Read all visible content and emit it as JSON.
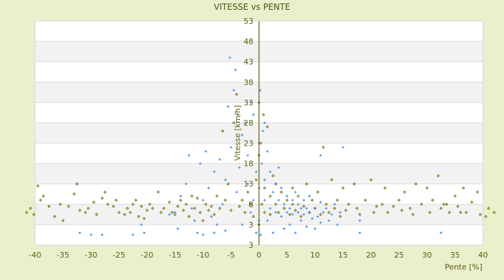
{
  "chart_data": {
    "type": "scatter",
    "title": "VITESSE vs PENTE",
    "xlabel": "Pente [%]",
    "ylabel": "Vitesse [km/h]",
    "xlim": [
      -40,
      40
    ],
    "ylim": [
      -2,
      53
    ],
    "x_ticks": [
      "-40",
      "-35",
      "-30",
      "-25",
      "-20",
      "-15",
      "-10",
      "-5",
      "0",
      "5",
      "10",
      "15",
      "20",
      "25",
      "30",
      "35",
      "40"
    ],
    "y_ticks": [
      "53",
      "48",
      "43",
      "38",
      "33",
      "28",
      "23",
      "18",
      "13",
      "8",
      "3",
      "3"
    ],
    "grid": "horizontal alternating bands",
    "legend": "none",
    "colors": {
      "background": "#eaf0cc",
      "band": "#f2f2f2",
      "axis": "#5c5c10",
      "series_olive": "#6b6b00",
      "series_blue": "#3a8fe0"
    },
    "series": [
      {
        "color": "#6b6b00",
        "marker": "diamond",
        "points": [
          [
            -41.5,
            6
          ],
          [
            -40.8,
            7
          ],
          [
            -40.2,
            5.5
          ],
          [
            -39.5,
            12.5
          ],
          [
            -39,
            9
          ],
          [
            -38.5,
            10
          ],
          [
            -37.5,
            7.5
          ],
          [
            -36.5,
            5
          ],
          [
            -35.5,
            8
          ],
          [
            -35,
            4
          ],
          [
            -34,
            7.5
          ],
          [
            -33,
            10.5
          ],
          [
            -32.5,
            13
          ],
          [
            -32,
            6.5
          ],
          [
            -31,
            6
          ],
          [
            -30.5,
            7
          ],
          [
            -29.5,
            8.5
          ],
          [
            -29,
            5.5
          ],
          [
            -28,
            9.5
          ],
          [
            -27.5,
            11
          ],
          [
            -27,
            8
          ],
          [
            -26,
            7.5
          ],
          [
            -25.5,
            9
          ],
          [
            -25,
            6
          ],
          [
            -24,
            5.5
          ],
          [
            -23.5,
            7
          ],
          [
            -23,
            6
          ],
          [
            -22.5,
            8
          ],
          [
            -22,
            9
          ],
          [
            -21.5,
            5
          ],
          [
            -21,
            7.5
          ],
          [
            -20.5,
            4.5
          ],
          [
            -20,
            6.5
          ],
          [
            -19.5,
            8
          ],
          [
            -19,
            7
          ],
          [
            -18,
            11
          ],
          [
            -17.5,
            6
          ],
          [
            -17,
            7
          ],
          [
            -16,
            8.5
          ],
          [
            -15.5,
            6
          ],
          [
            -15,
            5.5
          ],
          [
            -14.5,
            7.5
          ],
          [
            -14,
            9
          ],
          [
            -13.5,
            6.5
          ],
          [
            -13,
            8
          ],
          [
            -12.5,
            5
          ],
          [
            -12,
            10
          ],
          [
            -11.5,
            7
          ],
          [
            -11,
            9.5
          ],
          [
            -10.5,
            6
          ],
          [
            -10,
            4
          ],
          [
            -9.5,
            8
          ],
          [
            -9,
            6.5
          ],
          [
            -8.5,
            7.5
          ],
          [
            -8,
            5.5
          ],
          [
            -7.5,
            10
          ],
          [
            -7,
            7
          ],
          [
            -6.5,
            26
          ],
          [
            -6,
            9
          ],
          [
            -5.5,
            13
          ],
          [
            -5,
            6.5
          ],
          [
            -4.5,
            28
          ],
          [
            -4,
            35
          ],
          [
            -3.5,
            7.5
          ],
          [
            -3,
            9
          ],
          [
            -2.5,
            6
          ],
          [
            -2,
            11
          ],
          [
            -1.5,
            8
          ],
          [
            -1,
            5
          ],
          [
            -0.5,
            14
          ],
          [
            0,
            3
          ],
          [
            0,
            33
          ],
          [
            0,
            20
          ],
          [
            0.3,
            23
          ],
          [
            0.5,
            8
          ],
          [
            0.8,
            30
          ],
          [
            1,
            12
          ],
          [
            1,
            6
          ],
          [
            1.5,
            27
          ],
          [
            2,
            10
          ],
          [
            2,
            5.5
          ],
          [
            2.5,
            15
          ],
          [
            3,
            8
          ],
          [
            3,
            13
          ],
          [
            3.5,
            6
          ],
          [
            4,
            11
          ],
          [
            4.5,
            7
          ],
          [
            5,
            9
          ],
          [
            5.5,
            5.5
          ],
          [
            6,
            8
          ],
          [
            6,
            12
          ],
          [
            6.5,
            6.5
          ],
          [
            7,
            10
          ],
          [
            7.5,
            5
          ],
          [
            8,
            7.5
          ],
          [
            8.5,
            13
          ],
          [
            9,
            6
          ],
          [
            9.5,
            9
          ],
          [
            10,
            7
          ],
          [
            10.5,
            11
          ],
          [
            11,
            5.5
          ],
          [
            11.5,
            22
          ],
          [
            12,
            8
          ],
          [
            12.5,
            6
          ],
          [
            13,
            14
          ],
          [
            13.5,
            7
          ],
          [
            14,
            9
          ],
          [
            14.5,
            5
          ],
          [
            15,
            12
          ],
          [
            15.5,
            6.5
          ],
          [
            16,
            8
          ],
          [
            17,
            13
          ],
          [
            17.5,
            7
          ],
          [
            18,
            5.5
          ],
          [
            19,
            9
          ],
          [
            20,
            14
          ],
          [
            20.5,
            6
          ],
          [
            21,
            7.5
          ],
          [
            22,
            8
          ],
          [
            22.5,
            12
          ],
          [
            23,
            6
          ],
          [
            24,
            7.5
          ],
          [
            25,
            9
          ],
          [
            25.5,
            6.5
          ],
          [
            26,
            11
          ],
          [
            27,
            7
          ],
          [
            27.5,
            5.5
          ],
          [
            28,
            13
          ],
          [
            29,
            8
          ],
          [
            30,
            12
          ],
          [
            30.5,
            6
          ],
          [
            31,
            9
          ],
          [
            32,
            15
          ],
          [
            32.5,
            7
          ],
          [
            33,
            8
          ],
          [
            34,
            6
          ],
          [
            35,
            10
          ],
          [
            35.5,
            7.5
          ],
          [
            36.5,
            12
          ],
          [
            37,
            6
          ],
          [
            38,
            8.5
          ],
          [
            39,
            11
          ],
          [
            40.5,
            5
          ],
          [
            41,
            7
          ],
          [
            42,
            6
          ],
          [
            39.5,
            5.5
          ],
          [
            36,
            6
          ],
          [
            33.5,
            8
          ]
        ]
      },
      {
        "color": "#3a8fe0",
        "marker": "plus",
        "points": [
          [
            -32,
            1
          ],
          [
            -30,
            0.5
          ],
          [
            -28,
            0.5
          ],
          [
            -22.5,
            0.5
          ],
          [
            -20.5,
            1
          ],
          [
            -21,
            3
          ],
          [
            -16,
            5.5
          ],
          [
            -15,
            6
          ],
          [
            -14.5,
            2
          ],
          [
            -14,
            10
          ],
          [
            -13,
            13
          ],
          [
            -12.5,
            20
          ],
          [
            -12,
            7
          ],
          [
            -11.5,
            4
          ],
          [
            -11,
            1
          ],
          [
            -10.5,
            18
          ],
          [
            -10,
            0.5
          ],
          [
            -10,
            9
          ],
          [
            -9.5,
            21
          ],
          [
            -9,
            12
          ],
          [
            -8.5,
            5
          ],
          [
            -8,
            1
          ],
          [
            -8,
            16
          ],
          [
            -7.5,
            3
          ],
          [
            -7,
            19
          ],
          [
            -6.5,
            8
          ],
          [
            -6,
            1.5
          ],
          [
            -6,
            14
          ],
          [
            -5.5,
            32
          ],
          [
            -5.2,
            44
          ],
          [
            -5,
            22
          ],
          [
            -4.5,
            36
          ],
          [
            -4.2,
            41
          ],
          [
            -4,
            11
          ],
          [
            -3.8,
            30
          ],
          [
            -3.5,
            17
          ],
          [
            -3,
            3
          ],
          [
            -3,
            25
          ],
          [
            -2.5,
            28
          ],
          [
            -2,
            13
          ],
          [
            -2,
            20
          ],
          [
            -1.5,
            6
          ],
          [
            -1,
            30
          ],
          [
            -1,
            9
          ],
          [
            -0.5,
            16
          ],
          [
            -0.5,
            1
          ],
          [
            0,
            23
          ],
          [
            0,
            4
          ],
          [
            0,
            12
          ],
          [
            0.2,
            36
          ],
          [
            0.3,
            0.5
          ],
          [
            0.5,
            18
          ],
          [
            0.7,
            26
          ],
          [
            1,
            9
          ],
          [
            1,
            14
          ],
          [
            1.5,
            21
          ],
          [
            1.5,
            4
          ],
          [
            2,
            16
          ],
          [
            2,
            7
          ],
          [
            2.5,
            11
          ],
          [
            2.5,
            1
          ],
          [
            3,
            6
          ],
          [
            3,
            13
          ],
          [
            3.5,
            9
          ],
          [
            3.5,
            17
          ],
          [
            4,
            5
          ],
          [
            4,
            12
          ],
          [
            4.5,
            8
          ],
          [
            4.5,
            2
          ],
          [
            5,
            10
          ],
          [
            5,
            6
          ],
          [
            5.5,
            7
          ],
          [
            5.5,
            3
          ],
          [
            6,
            9
          ],
          [
            6,
            5.5
          ],
          [
            6.5,
            11
          ],
          [
            6.5,
            1
          ],
          [
            7,
            6
          ],
          [
            7,
            8
          ],
          [
            7.5,
            4
          ],
          [
            7.5,
            7
          ],
          [
            8,
            9
          ],
          [
            8,
            5.5
          ],
          [
            8.5,
            2.5
          ],
          [
            8.5,
            7
          ],
          [
            9,
            6
          ],
          [
            9,
            10
          ],
          [
            9.5,
            4.5
          ],
          [
            10,
            7
          ],
          [
            10,
            2
          ],
          [
            10.5,
            5
          ],
          [
            11,
            8.5
          ],
          [
            11,
            3.5
          ],
          [
            11.5,
            6
          ],
          [
            12,
            7
          ],
          [
            12.5,
            4
          ],
          [
            13,
            5.5
          ],
          [
            13.5,
            8
          ],
          [
            14,
            3
          ],
          [
            14.5,
            6
          ],
          [
            18,
            1
          ],
          [
            18,
            4
          ],
          [
            32.5,
            1
          ],
          [
            15,
            22
          ],
          [
            11,
            20
          ],
          [
            -1.5,
            33
          ],
          [
            1,
            28
          ]
        ]
      }
    ]
  }
}
